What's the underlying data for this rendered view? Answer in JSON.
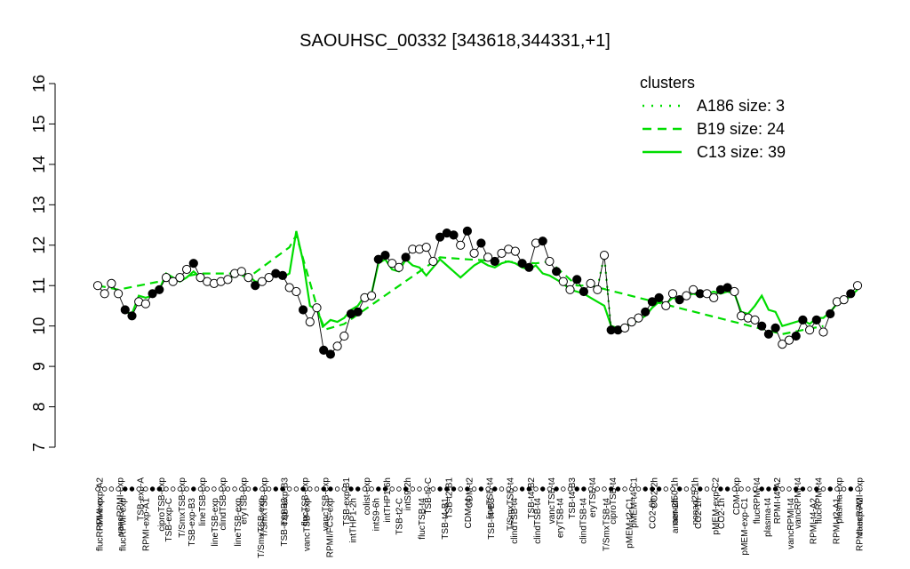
{
  "chart_data": {
    "type": "line",
    "title": "SAOUHSC_00332 [343618,344331,+1]",
    "xlabel": "",
    "ylabel": "",
    "ylim": [
      7,
      16
    ],
    "yticks": [
      7,
      8,
      9,
      10,
      11,
      12,
      13,
      14,
      15,
      16
    ],
    "grid": false,
    "legend_position": "top-right",
    "legend": {
      "title": "clusters",
      "color": "#00dd00",
      "entries": [
        {
          "label": "A186 size: 3",
          "style": "dotted"
        },
        {
          "label": "B19 size: 24",
          "style": "dashed"
        },
        {
          "label": "C13 size: 39",
          "style": "solid"
        }
      ]
    },
    "colors": {
      "cluster_line": "#00dd00",
      "point_fill": "#ffffff",
      "point_fill_alt": "#000000"
    },
    "top_labels": [
      "RPMI-exp-A2",
      "vancRPMI-exp",
      "TSB-exp-A",
      "ciproTSB-exp",
      "T/SmxTSB-exp",
      "lineTSB-exp",
      "clindTSB-exp",
      "eryTSB-exp",
      "T/SmxTSB-exp",
      "TSB-exp-B3",
      "flucTSB-exp",
      "vancTSB-exp",
      "TSB-exp-B1",
      "colist-exp",
      "intTHP1-6h",
      "intS9-2h",
      "TSB-t4-C",
      "TSB-t2-B1",
      "CDM-t2",
      "lineTSB-t4",
      "T/SmxTSB-t4",
      "TSB-t4-B2",
      "vancTSB-t4",
      "TSB-t4-B3",
      "eryTSB-t4",
      "ciproTSB-t4",
      "pMEM-t4-C1",
      "CO2-2h",
      "nonad50-1h",
      "nonad25-1h",
      "pMEM-exp-C2",
      "CDM-exp",
      "flucRPMI-t4",
      "RPMI-t4-A2",
      "vancRPMI-t4",
      "flucRPMI-t4",
      "plasma-exp",
      "vancRPMI-exp"
    ],
    "bottom_labels": [
      "flucRPMI-exp",
      "flucRPMI-exp",
      "RPMI-exp-A1",
      "TSB-exp-C",
      "TSB-exp-B3",
      "lineTSB-exp",
      "lineTSB-exp",
      "T/SmxTSB-exp",
      "TSB-exp-B2",
      "vancTSB-exp",
      "RPMI/FCS-exp",
      "intTHP1-2h",
      "intS9-6h",
      "TSB-t2-C",
      "flucTSB-t4",
      "TSB-t4-B1",
      "CDM-t4",
      "TSB-t4-B3",
      "clindTSB-t4",
      "clindTSB-t4",
      "eryTSB-t4",
      "clindTSB-t4",
      "T/SmxTSB-t4",
      "pMEM-t2-C1",
      "CO2-6h",
      "anaer-2h",
      "CO2-1h",
      "CO2-1h",
      "pMEM-exp-C1",
      "plasma-t4",
      "vancRPMI-t4",
      "RPMI-t4-A2",
      "RPMI-t2-A1",
      "RPMI-exp-A2"
    ],
    "points": [
      {
        "x": 1,
        "y": 11.0,
        "c": "B"
      },
      {
        "x": 2,
        "y": 10.8,
        "c": "B"
      },
      {
        "x": 3,
        "y": 11.05,
        "c": "B"
      },
      {
        "x": 4,
        "y": 10.8,
        "c": "B"
      },
      {
        "x": 5,
        "y": 10.4,
        "c": "C",
        "f": 1
      },
      {
        "x": 6,
        "y": 10.25,
        "c": "C",
        "f": 1
      },
      {
        "x": 7,
        "y": 10.6,
        "c": "C"
      },
      {
        "x": 8,
        "y": 10.55,
        "c": "C"
      },
      {
        "x": 9,
        "y": 10.8,
        "c": "C",
        "f": 1
      },
      {
        "x": 10,
        "y": 10.9,
        "c": "C",
        "f": 1
      },
      {
        "x": 11,
        "y": 11.2,
        "c": "C"
      },
      {
        "x": 12,
        "y": 11.1,
        "c": "C"
      },
      {
        "x": 13,
        "y": 11.2,
        "c": "B"
      },
      {
        "x": 14,
        "y": 11.4,
        "c": "B"
      },
      {
        "x": 15,
        "y": 11.55,
        "c": "B",
        "f": 1
      },
      {
        "x": 16,
        "y": 11.2,
        "c": "B"
      },
      {
        "x": 17,
        "y": 11.1,
        "c": "C"
      },
      {
        "x": 18,
        "y": 11.05,
        "c": "C"
      },
      {
        "x": 19,
        "y": 11.1,
        "c": "C"
      },
      {
        "x": 20,
        "y": 11.15,
        "c": "C"
      },
      {
        "x": 21,
        "y": 11.3,
        "c": "B"
      },
      {
        "x": 22,
        "y": 11.35,
        "c": "B"
      },
      {
        "x": 23,
        "y": 11.2,
        "c": "B"
      },
      {
        "x": 24,
        "y": 11.0,
        "c": "C",
        "f": 1
      },
      {
        "x": 25,
        "y": 11.1,
        "c": "C"
      },
      {
        "x": 26,
        "y": 11.2,
        "c": "C"
      },
      {
        "x": 27,
        "y": 11.3,
        "c": "C",
        "f": 1
      },
      {
        "x": 28,
        "y": 11.25,
        "c": "C",
        "f": 1
      },
      {
        "x": 29,
        "y": 10.95,
        "c": "B"
      },
      {
        "x": 30,
        "y": 10.85,
        "c": "B"
      },
      {
        "x": 31,
        "y": 10.4,
        "c": "C",
        "f": 1
      },
      {
        "x": 32,
        "y": 10.1,
        "c": "C"
      },
      {
        "x": 33,
        "y": 10.45,
        "c": "C"
      },
      {
        "x": 34,
        "y": 9.4,
        "c": "B",
        "f": 1
      },
      {
        "x": 35,
        "y": 9.3,
        "c": "B",
        "f": 1
      },
      {
        "x": 36,
        "y": 9.5,
        "c": "B"
      },
      {
        "x": 37,
        "y": 9.75,
        "c": "B"
      },
      {
        "x": 38,
        "y": 10.3,
        "c": "C",
        "f": 1
      },
      {
        "x": 39,
        "y": 10.35,
        "c": "C",
        "f": 1
      },
      {
        "x": 40,
        "y": 10.7,
        "c": "C"
      },
      {
        "x": 41,
        "y": 10.75,
        "c": "C"
      },
      {
        "x": 42,
        "y": 11.65,
        "c": "C",
        "f": 1
      },
      {
        "x": 43,
        "y": 11.75,
        "c": "C",
        "f": 1
      },
      {
        "x": 44,
        "y": 11.55,
        "c": "C"
      },
      {
        "x": 45,
        "y": 11.45,
        "c": "C"
      },
      {
        "x": 46,
        "y": 11.7,
        "c": "C",
        "f": 1
      },
      {
        "x": 47,
        "y": 11.9,
        "c": "C"
      },
      {
        "x": 48,
        "y": 11.9,
        "c": "C"
      },
      {
        "x": 49,
        "y": 11.95,
        "c": "C"
      },
      {
        "x": 50,
        "y": 11.6,
        "c": "C"
      },
      {
        "x": 51,
        "y": 12.2,
        "c": "B",
        "f": 1
      },
      {
        "x": 52,
        "y": 12.3,
        "c": "B",
        "f": 1
      },
      {
        "x": 53,
        "y": 12.25,
        "c": "B",
        "f": 1
      },
      {
        "x": 54,
        "y": 12.0,
        "c": "B"
      },
      {
        "x": 55,
        "y": 12.35,
        "c": "B",
        "f": 1
      },
      {
        "x": 56,
        "y": 11.8,
        "c": "C"
      },
      {
        "x": 57,
        "y": 12.05,
        "c": "C",
        "f": 1
      },
      {
        "x": 58,
        "y": 11.7,
        "c": "C"
      },
      {
        "x": 59,
        "y": 11.6,
        "c": "C",
        "f": 1
      },
      {
        "x": 60,
        "y": 11.8,
        "c": "C"
      },
      {
        "x": 61,
        "y": 11.9,
        "c": "C"
      },
      {
        "x": 62,
        "y": 11.85,
        "c": "C"
      },
      {
        "x": 63,
        "y": 11.55,
        "c": "C",
        "f": 1
      },
      {
        "x": 64,
        "y": 11.45,
        "c": "C",
        "f": 1
      },
      {
        "x": 65,
        "y": 12.05,
        "c": "B"
      },
      {
        "x": 66,
        "y": 12.1,
        "c": "B",
        "f": 1
      },
      {
        "x": 67,
        "y": 11.6,
        "c": "B"
      },
      {
        "x": 68,
        "y": 11.35,
        "c": "C",
        "f": 1
      },
      {
        "x": 69,
        "y": 11.1,
        "c": "C"
      },
      {
        "x": 70,
        "y": 10.9,
        "c": "C"
      },
      {
        "x": 71,
        "y": 11.15,
        "c": "B",
        "f": 1
      },
      {
        "x": 72,
        "y": 10.85,
        "c": "B",
        "f": 1
      },
      {
        "x": 73,
        "y": 11.05,
        "c": "B"
      },
      {
        "x": 74,
        "y": 10.9,
        "c": "A"
      },
      {
        "x": 75,
        "y": 11.75,
        "c": "A"
      },
      {
        "x": 76,
        "y": 9.9,
        "c": "C",
        "f": 1
      },
      {
        "x": 77,
        "y": 9.9,
        "c": "C",
        "f": 1
      },
      {
        "x": 78,
        "y": 9.95,
        "c": "C"
      },
      {
        "x": 79,
        "y": 10.1,
        "c": "C"
      },
      {
        "x": 80,
        "y": 10.2,
        "c": "C"
      },
      {
        "x": 81,
        "y": 10.35,
        "c": "C",
        "f": 1
      },
      {
        "x": 82,
        "y": 10.6,
        "c": "C",
        "f": 1
      },
      {
        "x": 83,
        "y": 10.7,
        "c": "C",
        "f": 1
      },
      {
        "x": 84,
        "y": 10.5,
        "c": "C"
      },
      {
        "x": 85,
        "y": 10.8,
        "c": "C"
      },
      {
        "x": 86,
        "y": 10.65,
        "c": "C",
        "f": 1
      },
      {
        "x": 87,
        "y": 10.75,
        "c": "C"
      },
      {
        "x": 88,
        "y": 10.9,
        "c": "C"
      },
      {
        "x": 89,
        "y": 10.8,
        "c": "C",
        "f": 1
      },
      {
        "x": 90,
        "y": 10.8,
        "c": "C"
      },
      {
        "x": 91,
        "y": 10.7,
        "c": "C"
      },
      {
        "x": 92,
        "y": 10.9,
        "c": "C",
        "f": 1
      },
      {
        "x": 93,
        "y": 10.95,
        "c": "C",
        "f": 1
      },
      {
        "x": 94,
        "y": 10.85,
        "c": "C"
      },
      {
        "x": 95,
        "y": 10.25,
        "c": "C"
      },
      {
        "x": 96,
        "y": 10.2,
        "c": "C"
      },
      {
        "x": 97,
        "y": 10.15,
        "c": "C"
      },
      {
        "x": 98,
        "y": 10.0,
        "c": "C",
        "f": 1
      },
      {
        "x": 99,
        "y": 9.8,
        "c": "C",
        "f": 1
      },
      {
        "x": 100,
        "y": 9.95,
        "c": "C",
        "f": 1
      },
      {
        "x": 101,
        "y": 9.55,
        "c": "B"
      },
      {
        "x": 102,
        "y": 9.65,
        "c": "B"
      },
      {
        "x": 103,
        "y": 9.75,
        "c": "B",
        "f": 1
      },
      {
        "x": 104,
        "y": 10.15,
        "c": "B",
        "f": 1
      },
      {
        "x": 105,
        "y": 9.9,
        "c": "B"
      },
      {
        "x": 106,
        "y": 10.15,
        "c": "B",
        "f": 1
      },
      {
        "x": 107,
        "y": 9.85,
        "c": "B"
      },
      {
        "x": 108,
        "y": 10.3,
        "c": "C",
        "f": 1
      },
      {
        "x": 109,
        "y": 10.6,
        "c": "C"
      },
      {
        "x": 110,
        "y": 10.65,
        "c": "C"
      },
      {
        "x": 111,
        "y": 10.8,
        "c": "C",
        "f": 1
      },
      {
        "x": 112,
        "y": 11.0,
        "c": "C"
      }
    ],
    "cluster_means": {
      "A": [
        {
          "x": 74,
          "y": 10.95
        },
        {
          "x": 75,
          "y": 11.75
        },
        {
          "x": 76,
          "y": 9.9
        }
      ],
      "B": [
        {
          "x": 1,
          "y": 11.0
        },
        {
          "x": 4,
          "y": 10.9
        },
        {
          "x": 13,
          "y": 11.2
        },
        {
          "x": 16,
          "y": 11.3
        },
        {
          "x": 21,
          "y": 11.3
        },
        {
          "x": 23,
          "y": 11.2
        },
        {
          "x": 29,
          "y": 11.95
        },
        {
          "x": 30,
          "y": 12.25
        },
        {
          "x": 34,
          "y": 9.9
        },
        {
          "x": 37,
          "y": 10.05
        },
        {
          "x": 51,
          "y": 11.7
        },
        {
          "x": 55,
          "y": 11.65
        },
        {
          "x": 65,
          "y": 11.55
        },
        {
          "x": 67,
          "y": 11.6
        },
        {
          "x": 71,
          "y": 11.0
        },
        {
          "x": 73,
          "y": 11.0
        },
        {
          "x": 101,
          "y": 9.8
        },
        {
          "x": 107,
          "y": 10.0
        }
      ],
      "C": [
        {
          "x": 5,
          "y": 10.35
        },
        {
          "x": 6,
          "y": 10.3
        },
        {
          "x": 7,
          "y": 10.75
        },
        {
          "x": 8,
          "y": 10.7
        },
        {
          "x": 9,
          "y": 10.75
        },
        {
          "x": 10,
          "y": 10.9
        },
        {
          "x": 11,
          "y": 11.3
        },
        {
          "x": 12,
          "y": 11.2
        },
        {
          "x": 13,
          "y": 11.1
        },
        {
          "x": 14,
          "y": 11.2
        },
        {
          "x": 15,
          "y": 11.35
        },
        {
          "x": 16,
          "y": 11.2
        },
        {
          "x": 17,
          "y": 11.1
        },
        {
          "x": 18,
          "y": 11.1
        },
        {
          "x": 19,
          "y": 11.15
        },
        {
          "x": 20,
          "y": 11.1
        },
        {
          "x": 21,
          "y": 11.3
        },
        {
          "x": 22,
          "y": 11.35
        },
        {
          "x": 23,
          "y": 11.25
        },
        {
          "x": 24,
          "y": 11.1
        },
        {
          "x": 25,
          "y": 11.1
        },
        {
          "x": 26,
          "y": 11.2
        },
        {
          "x": 27,
          "y": 11.3
        },
        {
          "x": 28,
          "y": 11.2
        },
        {
          "x": 29,
          "y": 11.3
        },
        {
          "x": 30,
          "y": 12.35
        },
        {
          "x": 31,
          "y": 11.6
        },
        {
          "x": 32,
          "y": 10.5
        },
        {
          "x": 33,
          "y": 10.4
        },
        {
          "x": 34,
          "y": 10.0
        },
        {
          "x": 35,
          "y": 10.15
        },
        {
          "x": 36,
          "y": 10.1
        },
        {
          "x": 37,
          "y": 10.2
        },
        {
          "x": 38,
          "y": 10.4
        },
        {
          "x": 39,
          "y": 10.5
        },
        {
          "x": 40,
          "y": 10.75
        },
        {
          "x": 41,
          "y": 10.8
        },
        {
          "x": 42,
          "y": 11.55
        },
        {
          "x": 43,
          "y": 11.65
        },
        {
          "x": 44,
          "y": 11.4
        },
        {
          "x": 45,
          "y": 11.35
        },
        {
          "x": 46,
          "y": 11.65
        },
        {
          "x": 47,
          "y": 11.5
        },
        {
          "x": 48,
          "y": 11.45
        },
        {
          "x": 49,
          "y": 11.25
        },
        {
          "x": 50,
          "y": 11.45
        },
        {
          "x": 51,
          "y": 11.65
        },
        {
          "x": 52,
          "y": 11.5
        },
        {
          "x": 53,
          "y": 11.35
        },
        {
          "x": 54,
          "y": 11.2
        },
        {
          "x": 55,
          "y": 11.35
        },
        {
          "x": 56,
          "y": 11.5
        },
        {
          "x": 57,
          "y": 11.6
        },
        {
          "x": 58,
          "y": 11.5
        },
        {
          "x": 59,
          "y": 11.45
        },
        {
          "x": 60,
          "y": 11.55
        },
        {
          "x": 61,
          "y": 11.6
        },
        {
          "x": 62,
          "y": 11.55
        },
        {
          "x": 63,
          "y": 11.45
        },
        {
          "x": 64,
          "y": 11.4
        },
        {
          "x": 65,
          "y": 11.5
        },
        {
          "x": 66,
          "y": 11.3
        },
        {
          "x": 67,
          "y": 11.25
        },
        {
          "x": 68,
          "y": 11.15
        },
        {
          "x": 69,
          "y": 11.05
        },
        {
          "x": 70,
          "y": 10.9
        },
        {
          "x": 71,
          "y": 10.85
        },
        {
          "x": 72,
          "y": 10.8
        },
        {
          "x": 73,
          "y": 10.7
        },
        {
          "x": 74,
          "y": 10.6
        },
        {
          "x": 75,
          "y": 10.5
        },
        {
          "x": 76,
          "y": 10.0
        },
        {
          "x": 77,
          "y": 9.95
        },
        {
          "x": 78,
          "y": 10.0
        },
        {
          "x": 79,
          "y": 10.05
        },
        {
          "x": 80,
          "y": 10.15
        },
        {
          "x": 81,
          "y": 10.25
        },
        {
          "x": 82,
          "y": 10.45
        },
        {
          "x": 83,
          "y": 10.6
        },
        {
          "x": 84,
          "y": 10.55
        },
        {
          "x": 85,
          "y": 10.7
        },
        {
          "x": 86,
          "y": 10.65
        },
        {
          "x": 87,
          "y": 10.75
        },
        {
          "x": 88,
          "y": 10.8
        },
        {
          "x": 89,
          "y": 10.75
        },
        {
          "x": 90,
          "y": 10.8
        },
        {
          "x": 91,
          "y": 10.85
        },
        {
          "x": 92,
          "y": 10.8
        },
        {
          "x": 93,
          "y": 10.85
        },
        {
          "x": 94,
          "y": 10.8
        },
        {
          "x": 95,
          "y": 10.35
        },
        {
          "x": 96,
          "y": 10.3
        },
        {
          "x": 97,
          "y": 10.5
        },
        {
          "x": 98,
          "y": 10.75
        },
        {
          "x": 99,
          "y": 10.4
        },
        {
          "x": 100,
          "y": 10.35
        },
        {
          "x": 101,
          "y": 10.0
        },
        {
          "x": 102,
          "y": 10.05
        },
        {
          "x": 103,
          "y": 10.1
        },
        {
          "x": 104,
          "y": 10.15
        },
        {
          "x": 105,
          "y": 10.05
        },
        {
          "x": 106,
          "y": 10.2
        },
        {
          "x": 107,
          "y": 10.2
        },
        {
          "x": 108,
          "y": 10.35
        },
        {
          "x": 109,
          "y": 10.55
        },
        {
          "x": 110,
          "y": 10.6
        },
        {
          "x": 111,
          "y": 10.75
        },
        {
          "x": 112,
          "y": 10.9
        }
      ]
    }
  }
}
